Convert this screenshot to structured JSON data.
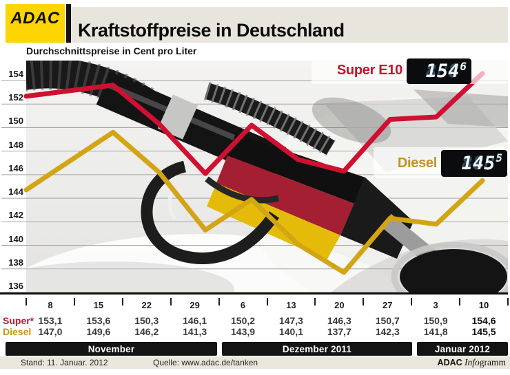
{
  "header": {
    "logo_text": "ADAC",
    "title": "Kraftstoffpreise in Deutschland",
    "subtitle": "Durchschnittspreise in Cent pro Liter"
  },
  "series_labels": {
    "super": {
      "label": "Super E10",
      "display_int": "154",
      "display_dec": "6",
      "ghost": "888",
      "ghost_sup": "8"
    },
    "diesel": {
      "label": "Diesel",
      "display_int": "145",
      "display_dec": "5",
      "ghost": "888",
      "ghost_sup": "8"
    }
  },
  "chart_data": {
    "type": "line",
    "x": [
      "8",
      "15",
      "22",
      "29",
      "6",
      "13",
      "20",
      "27",
      "3",
      "10"
    ],
    "series": [
      {
        "name": "Super E10",
        "color": "#d01031",
        "values": [
          153.1,
          153.6,
          150.3,
          146.1,
          150.2,
          147.3,
          146.3,
          150.7,
          150.9,
          154.6
        ]
      },
      {
        "name": "Diesel",
        "color": "#d3a414",
        "values": [
          147.0,
          149.6,
          146.2,
          141.3,
          143.9,
          140.1,
          137.7,
          142.3,
          141.8,
          145.5
        ]
      }
    ],
    "title": "Kraftstoffpreise in Deutschland",
    "ylabel": "Durchschnittspreise in Cent pro Liter",
    "ylim": [
      136,
      154
    ],
    "ytick_step": 2,
    "grid": true,
    "legend_position": "inline-right"
  },
  "table": {
    "dates": [
      "8",
      "15",
      "22",
      "29",
      "6",
      "13",
      "20",
      "27",
      "3",
      "10"
    ],
    "row_labels": [
      "Super*",
      "Diesel"
    ],
    "super_values": [
      "153,1",
      "153,6",
      "150,3",
      "146,1",
      "150,2",
      "147,3",
      "146,3",
      "150,7",
      "150,9",
      "154,6"
    ],
    "diesel_values": [
      "147,0",
      "149,6",
      "146,2",
      "141,3",
      "143,9",
      "140,1",
      "137,7",
      "142,3",
      "141,8",
      "145,5"
    ]
  },
  "months": [
    "November",
    "Dezember 2011",
    "Januar 2012"
  ],
  "footer": {
    "stand": "Stand: 11. Januar. 2012",
    "quelle": "Quelle: www.adac.de/tanken",
    "brand_adac": "ADAC",
    "brand_info": "Info",
    "brand_gramm": "gramm"
  },
  "colors": {
    "super_red": "#d01031",
    "diesel_yellow": "#d3a414",
    "logo_yellow": "#ffd500",
    "band_beige": "#e8e5dd",
    "bar_black": "#141414",
    "lcd_unlit": "#2c4a5a"
  }
}
